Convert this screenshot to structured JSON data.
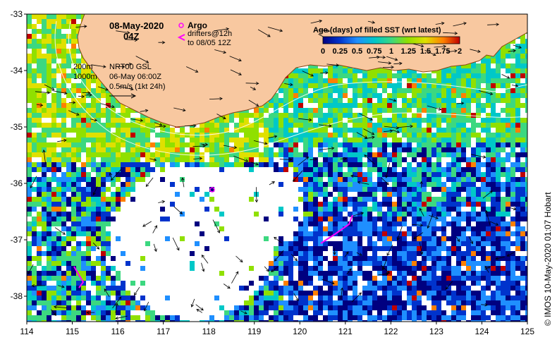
{
  "header": {
    "date": "08-May-2020",
    "time": "04Z"
  },
  "argo": {
    "label": "Argo",
    "marker_color": "#ff00ff"
  },
  "drifters": {
    "line1": "drifters@12h",
    "line2": "to 08/05 12Z",
    "color": "#ff00ff"
  },
  "isobaths": {
    "shallow": "200m",
    "deep": "1000m"
  },
  "currents": {
    "product": "NRT00 GSL",
    "valid_time": "06-May 06:00Z",
    "scale_label": "0.5m/s (1kt 24h)"
  },
  "legend": {
    "title": "Age (days) of filled SST (wrt latest)",
    "ticks": [
      "0",
      "0.25",
      "0.5",
      "0.75",
      "1",
      "1.25",
      "1.5",
      "1.75",
      "2"
    ],
    "colors": [
      "#000080",
      "#0033cc",
      "#1f8fff",
      "#00c8c8",
      "#3cd880",
      "#90e000",
      "#e0e000",
      "#ff8000",
      "#c00000"
    ]
  },
  "axes": {
    "x_ticks": [
      "114",
      "115",
      "116",
      "117",
      "118",
      "119",
      "120",
      "121",
      "122",
      "123",
      "124",
      "125"
    ],
    "y_ticks": [
      "-33",
      "-34",
      "-35",
      "-36",
      "-37",
      "-38"
    ]
  },
  "credit": "© IMOS 10-May-2020 01:07 Hobart",
  "colors": {
    "land": "#f8c8a0",
    "coast": "#8b4513",
    "background": "#ffffff"
  }
}
